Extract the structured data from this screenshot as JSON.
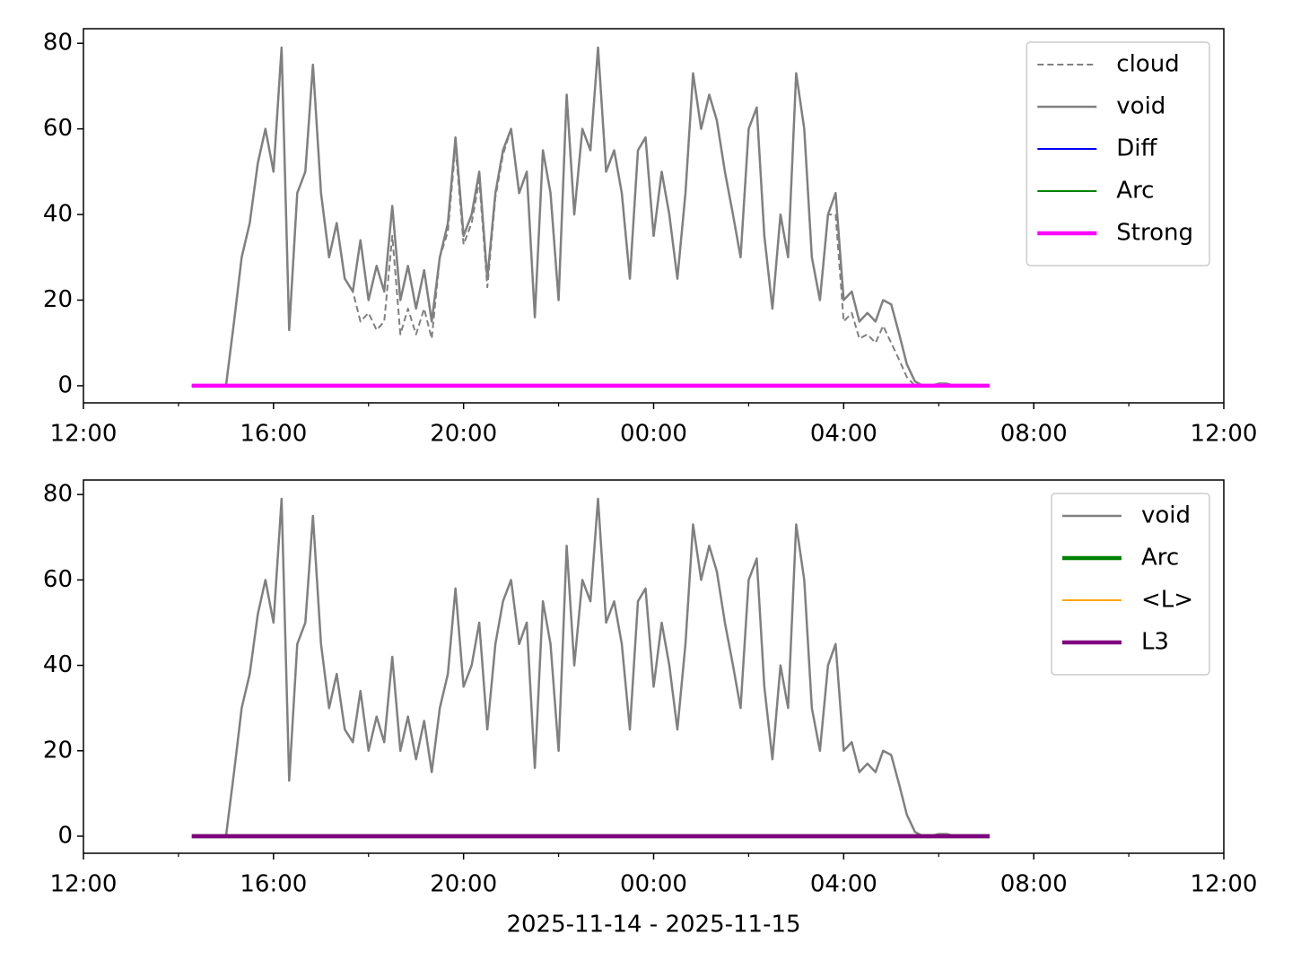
{
  "chart_data": [
    {
      "type": "line",
      "legend": "upper right",
      "xlim": [
        12,
        36
      ],
      "xticks": [
        {
          "value": 12,
          "label": "12:00"
        },
        {
          "value": 16,
          "label": "16:00"
        },
        {
          "value": 20,
          "label": "20:00"
        },
        {
          "value": 24,
          "label": "00:00"
        },
        {
          "value": 28,
          "label": "04:00"
        },
        {
          "value": 32,
          "label": "08:00"
        },
        {
          "value": 36,
          "label": "12:00"
        }
      ],
      "xminorticks": [
        14,
        18,
        22,
        26,
        30,
        34
      ],
      "ylim": [
        -4,
        83.4
      ],
      "yticks": [
        0,
        20,
        40,
        60,
        80
      ],
      "series": [
        {
          "name": "cloud",
          "color": "#808080",
          "dashed": true,
          "width": 2,
          "x": [
            15,
            15.17,
            15.33,
            15.5,
            15.67,
            15.83,
            16,
            16.17,
            16.33,
            16.5,
            16.67,
            16.83,
            17,
            17.17,
            17.33,
            17.5,
            17.67,
            17.83,
            18,
            18.17,
            18.33,
            18.5,
            18.67,
            18.83,
            19,
            19.17,
            19.33,
            19.5,
            19.67,
            19.83,
            20,
            20.17,
            20.33,
            20.5,
            20.67,
            20.83,
            21,
            21.17,
            21.33,
            21.5,
            21.67,
            21.83,
            22,
            22.17,
            22.33,
            22.5,
            22.67,
            22.83,
            23,
            23.17,
            23.33,
            23.5,
            23.67,
            23.83,
            24,
            24.17,
            24.33,
            24.5,
            24.67,
            24.83,
            25,
            25.17,
            25.33,
            25.5,
            25.67,
            25.83,
            26,
            26.17,
            26.33,
            26.5,
            26.67,
            26.83,
            27,
            27.17,
            27.33,
            27.5,
            27.67,
            27.83,
            28,
            28.17,
            28.33,
            28.5,
            28.67,
            28.83,
            29,
            29.17,
            29.33,
            29.5,
            29.67,
            29.83,
            30,
            30.17,
            30.33
          ],
          "values": [
            0,
            15,
            30,
            38,
            52,
            60,
            50,
            79,
            13,
            45,
            50,
            75,
            45,
            30,
            38,
            25,
            22,
            15,
            17,
            13,
            15,
            35,
            12,
            18,
            12,
            18,
            11,
            30,
            36,
            56,
            33,
            38,
            48,
            23,
            44,
            54,
            60,
            45,
            50,
            16,
            55,
            45,
            20,
            68,
            40,
            60,
            55,
            79,
            50,
            55,
            45,
            25,
            55,
            58,
            35,
            50,
            40,
            25,
            45,
            73,
            60,
            68,
            62,
            50,
            40,
            30,
            60,
            65,
            35,
            18,
            40,
            30,
            73,
            60,
            30,
            20,
            40,
            40,
            15,
            17,
            11,
            12,
            10,
            14,
            10,
            6,
            2,
            0,
            0,
            0,
            0.5,
            0.5,
            0
          ]
        },
        {
          "name": "void",
          "color": "#808080",
          "dashed": false,
          "width": 2.5,
          "x": [
            15,
            15.17,
            15.33,
            15.5,
            15.67,
            15.83,
            16,
            16.17,
            16.33,
            16.5,
            16.67,
            16.83,
            17,
            17.17,
            17.33,
            17.5,
            17.67,
            17.83,
            18,
            18.17,
            18.33,
            18.5,
            18.67,
            18.83,
            19,
            19.17,
            19.33,
            19.5,
            19.67,
            19.83,
            20,
            20.17,
            20.33,
            20.5,
            20.67,
            20.83,
            21,
            21.17,
            21.33,
            21.5,
            21.67,
            21.83,
            22,
            22.17,
            22.33,
            22.5,
            22.67,
            22.83,
            23,
            23.17,
            23.33,
            23.5,
            23.67,
            23.83,
            24,
            24.17,
            24.33,
            24.5,
            24.67,
            24.83,
            25,
            25.17,
            25.33,
            25.5,
            25.67,
            25.83,
            26,
            26.17,
            26.33,
            26.5,
            26.67,
            26.83,
            27,
            27.17,
            27.33,
            27.5,
            27.67,
            27.83,
            28,
            28.17,
            28.33,
            28.5,
            28.67,
            28.83,
            29,
            29.17,
            29.33,
            29.5,
            29.67,
            29.83,
            30,
            30.17,
            30.33
          ],
          "values": [
            0,
            15,
            30,
            38,
            52,
            60,
            50,
            79,
            13,
            45,
            50,
            75,
            45,
            30,
            38,
            25,
            22,
            34,
            20,
            28,
            22,
            42,
            20,
            28,
            18,
            27,
            15,
            30,
            38,
            58,
            35,
            40,
            50,
            25,
            45,
            55,
            60,
            45,
            50,
            16,
            55,
            45,
            20,
            68,
            40,
            60,
            55,
            79,
            50,
            55,
            45,
            25,
            55,
            58,
            35,
            50,
            40,
            25,
            45,
            73,
            60,
            68,
            62,
            50,
            40,
            30,
            60,
            65,
            35,
            18,
            40,
            30,
            73,
            60,
            30,
            20,
            40,
            45,
            20,
            22,
            15,
            17,
            15,
            20,
            19,
            12,
            5,
            1,
            0,
            0,
            0.5,
            0.5,
            0
          ]
        },
        {
          "name": "Diff",
          "color": "#0000ff",
          "dashed": false,
          "width": 2,
          "x": [
            14.28,
            31.07
          ],
          "values": [
            0,
            0
          ]
        },
        {
          "name": "Arc",
          "color": "#008000",
          "dashed": false,
          "width": 2,
          "x": [
            14.28,
            31.07
          ],
          "values": [
            0,
            0
          ]
        },
        {
          "name": "Strong",
          "color": "#ff00ff",
          "dashed": false,
          "width": 4.5,
          "x": [
            14.28,
            31.07
          ],
          "values": [
            0,
            0
          ]
        }
      ]
    },
    {
      "type": "line",
      "legend": "upper right",
      "xlabel": "2025-11-14 - 2025-11-15",
      "xlim": [
        12,
        36
      ],
      "xticks": [
        {
          "value": 12,
          "label": "12:00"
        },
        {
          "value": 16,
          "label": "16:00"
        },
        {
          "value": 20,
          "label": "20:00"
        },
        {
          "value": 24,
          "label": "00:00"
        },
        {
          "value": 28,
          "label": "04:00"
        },
        {
          "value": 32,
          "label": "08:00"
        },
        {
          "value": 36,
          "label": "12:00"
        }
      ],
      "xminorticks": [
        14,
        18,
        22,
        26,
        30,
        34
      ],
      "ylim": [
        -4,
        83.4
      ],
      "yticks": [
        0,
        20,
        40,
        60,
        80
      ],
      "series": [
        {
          "name": "void",
          "color": "#808080",
          "dashed": false,
          "width": 2.5,
          "x": [
            15,
            15.17,
            15.33,
            15.5,
            15.67,
            15.83,
            16,
            16.17,
            16.33,
            16.5,
            16.67,
            16.83,
            17,
            17.17,
            17.33,
            17.5,
            17.67,
            17.83,
            18,
            18.17,
            18.33,
            18.5,
            18.67,
            18.83,
            19,
            19.17,
            19.33,
            19.5,
            19.67,
            19.83,
            20,
            20.17,
            20.33,
            20.5,
            20.67,
            20.83,
            21,
            21.17,
            21.33,
            21.5,
            21.67,
            21.83,
            22,
            22.17,
            22.33,
            22.5,
            22.67,
            22.83,
            23,
            23.17,
            23.33,
            23.5,
            23.67,
            23.83,
            24,
            24.17,
            24.33,
            24.5,
            24.67,
            24.83,
            25,
            25.17,
            25.33,
            25.5,
            25.67,
            25.83,
            26,
            26.17,
            26.33,
            26.5,
            26.67,
            26.83,
            27,
            27.17,
            27.33,
            27.5,
            27.67,
            27.83,
            28,
            28.17,
            28.33,
            28.5,
            28.67,
            28.83,
            29,
            29.17,
            29.33,
            29.5,
            29.67,
            29.83,
            30,
            30.17,
            30.33
          ],
          "values": [
            0,
            15,
            30,
            38,
            52,
            60,
            50,
            79,
            13,
            45,
            50,
            75,
            45,
            30,
            38,
            25,
            22,
            34,
            20,
            28,
            22,
            42,
            20,
            28,
            18,
            27,
            15,
            30,
            38,
            58,
            35,
            40,
            50,
            25,
            45,
            55,
            60,
            45,
            50,
            16,
            55,
            45,
            20,
            68,
            40,
            60,
            55,
            79,
            50,
            55,
            45,
            25,
            55,
            58,
            35,
            50,
            40,
            25,
            45,
            73,
            60,
            68,
            62,
            50,
            40,
            30,
            60,
            65,
            35,
            18,
            40,
            30,
            73,
            60,
            30,
            20,
            40,
            45,
            20,
            22,
            15,
            17,
            15,
            20,
            19,
            12,
            5,
            1,
            0,
            0,
            0.5,
            0.5,
            0
          ]
        },
        {
          "name": "Arc",
          "color": "#008000",
          "dashed": false,
          "width": 4.5,
          "x": [
            14.28,
            31.07
          ],
          "values": [
            0,
            0
          ]
        },
        {
          "name": "<L>",
          "color": "#ffa500",
          "dashed": false,
          "width": 2,
          "x": [
            14.28,
            31.07
          ],
          "values": [
            0,
            0
          ]
        },
        {
          "name": "L3",
          "color": "#800080",
          "dashed": false,
          "width": 4.5,
          "x": [
            14.28,
            31.07
          ],
          "values": [
            0,
            0
          ]
        }
      ]
    }
  ]
}
